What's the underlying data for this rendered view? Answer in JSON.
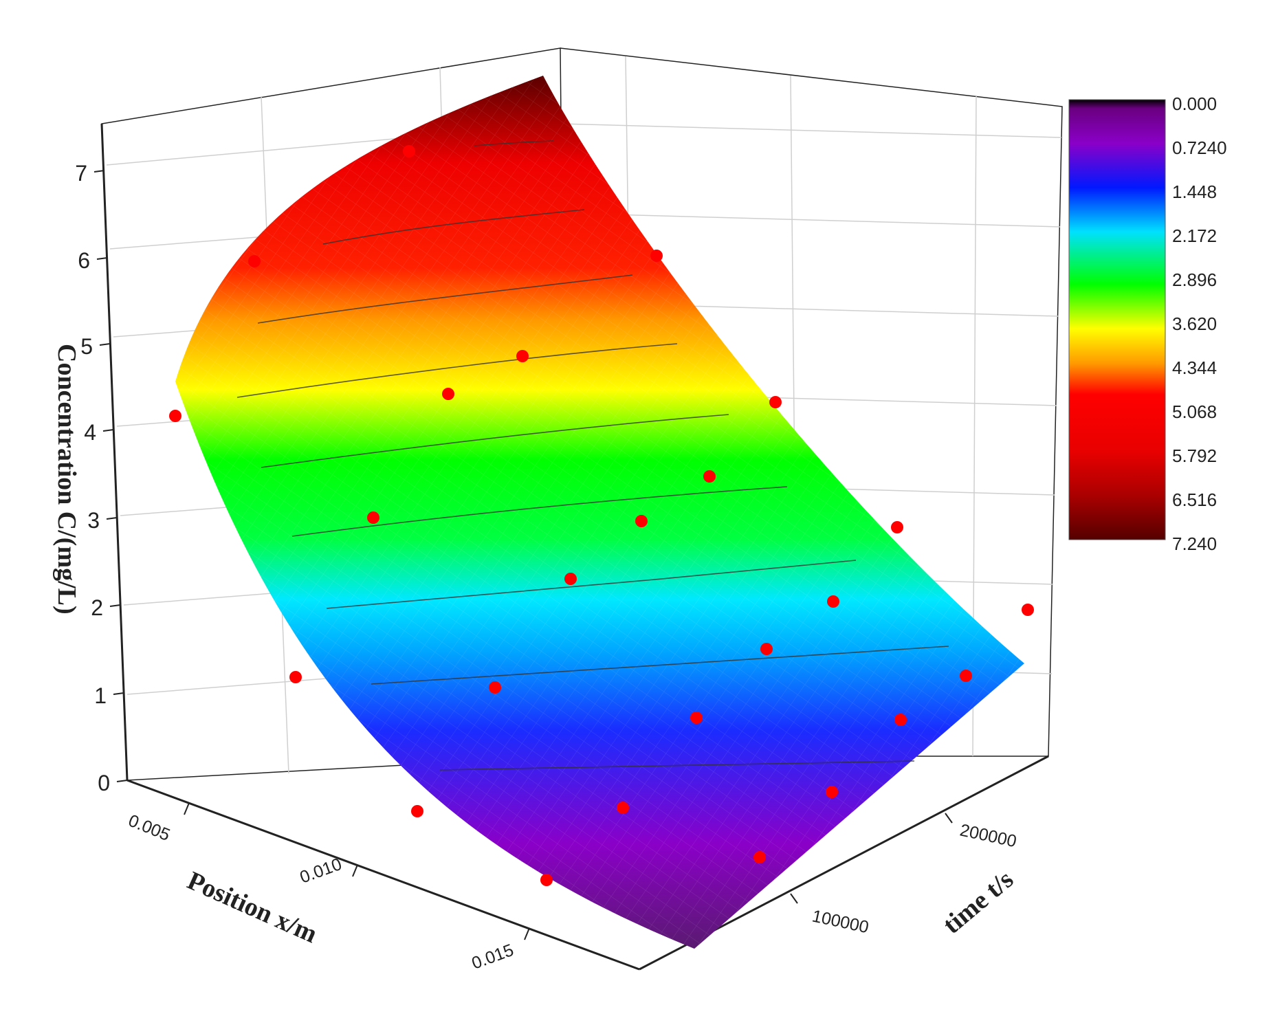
{
  "chart_data": {
    "type": "surface3d",
    "title": "",
    "zlabel": "Concentration C/(mg/L)",
    "xlabel": "Position x/m",
    "ylabel": "time t/s",
    "z_ticks": [
      "0",
      "1",
      "2",
      "3",
      "4",
      "5",
      "6",
      "7"
    ],
    "x_ticks": [
      "0.005",
      "0.010",
      "0.015"
    ],
    "t_ticks": [
      "100000",
      "200000"
    ],
    "zlim": [
      0,
      7.5
    ],
    "xlim": [
      0.004,
      0.018
    ],
    "tlim": [
      0,
      260000
    ],
    "grid": true,
    "colorbar": {
      "ticks": [
        "0.000",
        "0.7240",
        "1.448",
        "2.172",
        "2.896",
        "3.620",
        "4.344",
        "5.068",
        "5.792",
        "6.516",
        "7.240"
      ],
      "colors": [
        "#000000",
        "#8a00c8",
        "#0018ff",
        "#00e0ff",
        "#00ff00",
        "#ffff00",
        "#ff9900",
        "#ff0000",
        "#e80000",
        "#aa0000",
        "#550000"
      ]
    },
    "measured_points": [
      {
        "x": 0.004,
        "t": 20000,
        "c": 4.3
      },
      {
        "x": 0.004,
        "t": 100000,
        "c": 6.1
      },
      {
        "x": 0.004,
        "t": 190000,
        "c": 7.2
      },
      {
        "x": 0.008,
        "t": 20000,
        "c": 1.3
      },
      {
        "x": 0.008,
        "t": 100000,
        "c": 3.2
      },
      {
        "x": 0.008,
        "t": 150000,
        "c": 4.6
      },
      {
        "x": 0.008,
        "t": 200000,
        "c": 5.0
      },
      {
        "x": 0.008,
        "t": 250000,
        "c": 6.2
      },
      {
        "x": 0.012,
        "t": 20000,
        "c": 0.5
      },
      {
        "x": 0.012,
        "t": 100000,
        "c": 1.2
      },
      {
        "x": 0.012,
        "t": 150000,
        "c": 2.5
      },
      {
        "x": 0.012,
        "t": 200000,
        "c": 3.1
      },
      {
        "x": 0.012,
        "t": 250000,
        "c": 3.6
      },
      {
        "x": 0.012,
        "t": 250000,
        "c": 4.5
      },
      {
        "x": 0.016,
        "t": 20000,
        "c": 0.3
      },
      {
        "x": 0.016,
        "t": 80000,
        "c": 0.7
      },
      {
        "x": 0.016,
        "t": 130000,
        "c": 0.9
      },
      {
        "x": 0.016,
        "t": 180000,
        "c": 1.7
      },
      {
        "x": 0.016,
        "t": 230000,
        "c": 2.2
      },
      {
        "x": 0.016,
        "t": 250000,
        "c": 3.0
      },
      {
        "x": 0.018,
        "t": 100000,
        "c": 0.5
      },
      {
        "x": 0.018,
        "t": 150000,
        "c": 0.8
      },
      {
        "x": 0.018,
        "t": 200000,
        "c": 1.3
      },
      {
        "x": 0.018,
        "t": 250000,
        "c": 2.1
      }
    ]
  }
}
